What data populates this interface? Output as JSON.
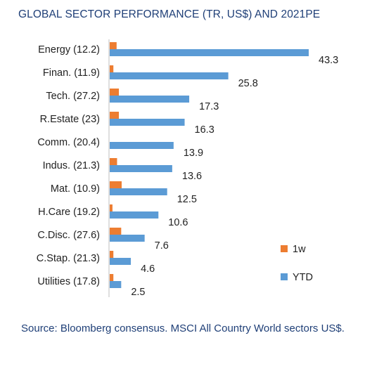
{
  "title": "GLOBAL SECTOR PERFORMANCE (TR, US$) AND 2021PE",
  "source": "Source: Bloomberg consensus. MSCI All Country World sectors US$.",
  "colors": {
    "one_week": "#ed7d31",
    "ytd": "#5b9bd5",
    "axis": "#bfbfbf"
  },
  "chart_data": {
    "type": "bar",
    "orientation": "horizontal",
    "categories": [
      "Energy (12.2)",
      "Finan. (11.9)",
      "Tech. (27.2)",
      "R.Estate (23)",
      "Comm. (20.4)",
      "Indus. (21.3)",
      "Mat. (10.9)",
      "H.Care (19.2)",
      "C.Disc. (27.6)",
      "C.Stap. (21.3)",
      "Utilities (17.8)"
    ],
    "series": [
      {
        "name": "1w",
        "values": [
          1.5,
          0.8,
          2.0,
          2.0,
          0.0,
          1.6,
          2.6,
          0.6,
          2.5,
          0.8,
          0.8
        ]
      },
      {
        "name": "YTD",
        "values": [
          43.3,
          25.8,
          17.3,
          16.3,
          13.9,
          13.6,
          12.5,
          10.6,
          7.6,
          4.6,
          2.5
        ],
        "data_labels": [
          "43.3",
          "25.8",
          "17.3",
          "16.3",
          "13.9",
          "13.6",
          "12.5",
          "10.6",
          "7.6",
          "4.6",
          "2.5"
        ]
      }
    ],
    "xlim": [
      0,
      43.3
    ],
    "legend": "right",
    "grid": false
  }
}
